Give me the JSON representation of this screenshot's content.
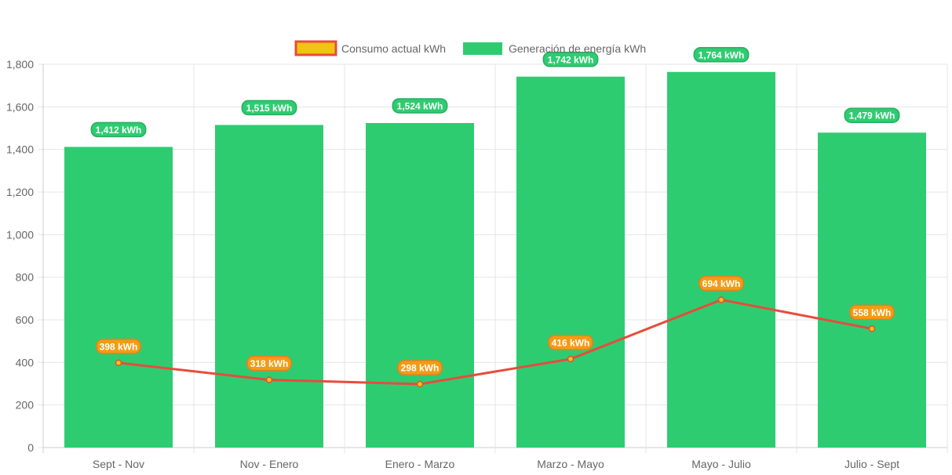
{
  "chart_data": {
    "type": "bar",
    "categories": [
      "Sept - Nov",
      "Nov - Enero",
      "Enero - Marzo",
      "Marzo - Mayo",
      "Mayo - Julio",
      "Julio - Sept"
    ],
    "series": [
      {
        "name": "Generación de energía kWh",
        "type": "bar",
        "values": [
          1412,
          1515,
          1524,
          1742,
          1764,
          1479
        ],
        "labels": [
          "1,412 kWh",
          "1,515 kWh",
          "1,524 kWh",
          "1,742 kWh",
          "1,764 kWh",
          "1,479 kWh"
        ],
        "color": "#2ecc71"
      },
      {
        "name": "Consumo actual kWh",
        "type": "line",
        "values": [
          398,
          318,
          298,
          416,
          694,
          558
        ],
        "labels": [
          "398 kWh",
          "318 kWh",
          "298 kWh",
          "416 kWh",
          "694 kWh",
          "558 kWh"
        ],
        "color": "#e74c3c",
        "point_color": "#f1c40f",
        "label_color": "#f39c12"
      }
    ],
    "y_ticks": [
      "0",
      "200",
      "400",
      "600",
      "800",
      "1,000",
      "1,200",
      "1,400",
      "1,600",
      "1,800"
    ],
    "ylim": [
      0,
      1800
    ],
    "legend": {
      "position": "top",
      "items": [
        {
          "label": "Consumo actual kWh",
          "fill": "#f1c40f",
          "border": "#e74c3c"
        },
        {
          "label": "Generación de energía kWh",
          "fill": "#2ecc71",
          "border": "#2ecc71"
        }
      ]
    },
    "grid": true
  }
}
